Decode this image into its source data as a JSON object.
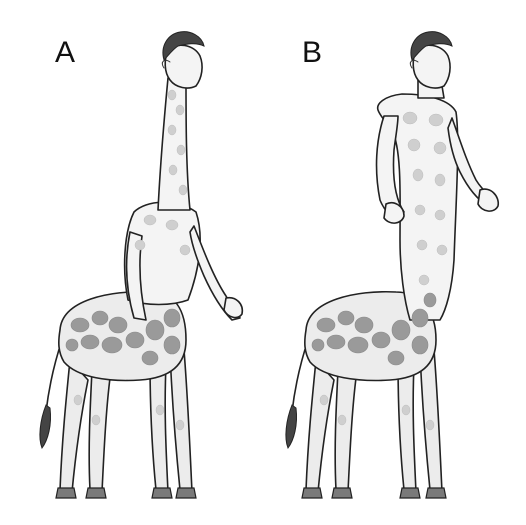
{
  "panels": [
    {
      "id": "a",
      "label": "A"
    },
    {
      "id": "b",
      "label": "B"
    }
  ],
  "colors": {
    "background": "#ffffff",
    "ink": "#222222",
    "spot_dark": "#9a9a9a",
    "spot_light": "#cfcfcf",
    "body": "#ececec"
  }
}
